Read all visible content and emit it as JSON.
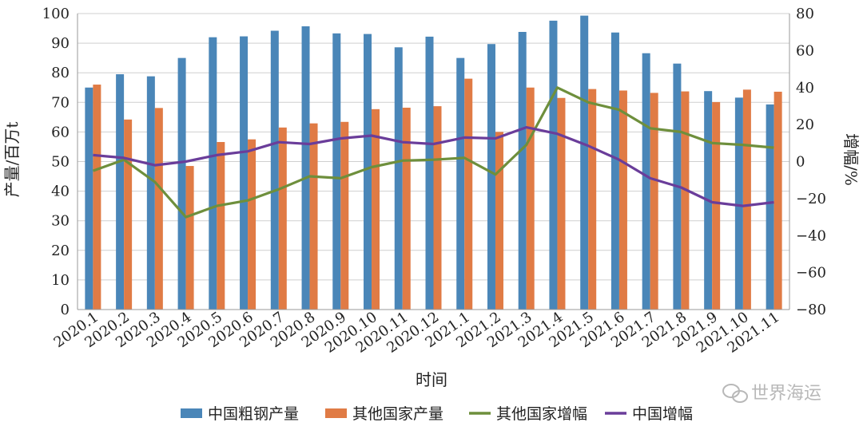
{
  "chart_data": {
    "type": "bar",
    "categories": [
      "2020.1",
      "2020.2",
      "2020.3",
      "2020.4",
      "2020.5",
      "2020.6",
      "2020.7",
      "2020.8",
      "2020.9",
      "2020.10",
      "2020.11",
      "2020.12",
      "2021.1",
      "2021.2",
      "2021.3",
      "2021.4",
      "2021.5",
      "2021.6",
      "2021.7",
      "2021.8",
      "2021.9",
      "2021.10",
      "2021.11"
    ],
    "xlabel": "时间",
    "ylabel": "产量/百万t",
    "y2label": "增幅/%",
    "ylim": [
      0,
      100
    ],
    "y2lim": [
      -80,
      80
    ],
    "yticks": [
      0,
      10,
      20,
      30,
      40,
      50,
      60,
      70,
      80,
      90,
      100
    ],
    "y2ticks": [
      -80,
      -60,
      -40,
      -20,
      0,
      20,
      40,
      60,
      80
    ],
    "grid": true,
    "legend_position": "bottom",
    "series": [
      {
        "name": "中国粗钢产量",
        "type": "bar",
        "axis": "left",
        "color": "#4a86b8",
        "values": [
          75.0,
          79.5,
          78.8,
          85.0,
          92.0,
          92.3,
          94.2,
          95.7,
          93.3,
          93.1,
          88.6,
          92.2,
          85.0,
          89.7,
          93.8,
          97.6,
          99.3,
          93.6,
          86.6,
          83.1,
          73.8,
          71.6,
          69.3
        ]
      },
      {
        "name": "其他国家产量",
        "type": "bar",
        "axis": "left",
        "color": "#e07b45",
        "values": [
          76.0,
          64.2,
          68.1,
          48.5,
          56.6,
          57.5,
          61.5,
          62.9,
          63.4,
          67.7,
          68.2,
          68.7,
          78.0,
          60.0,
          75.0,
          71.5,
          74.5,
          74.0,
          73.2,
          73.7,
          70.1,
          74.3,
          73.6
        ]
      },
      {
        "name": "其他国家增幅",
        "type": "line",
        "axis": "right",
        "color": "#6e8f3c",
        "values": [
          -5,
          1,
          -11,
          -30,
          -24,
          -21,
          -15,
          -8,
          -9,
          -3,
          0.5,
          1,
          2,
          -7,
          9,
          40,
          32,
          28,
          18,
          16,
          10,
          9,
          7.5
        ]
      },
      {
        "name": "中国增幅",
        "type": "line",
        "axis": "right",
        "color": "#6a3d9a",
        "values": [
          3.5,
          2,
          -2,
          0,
          3.5,
          5.5,
          10.5,
          9.5,
          12.5,
          14,
          10.5,
          9.5,
          13,
          12.5,
          18.5,
          15,
          8.5,
          1,
          -9,
          -14,
          -22,
          -24,
          -22
        ]
      }
    ]
  },
  "watermark": {
    "text": "世界海运",
    "icon": "wechat-icon"
  }
}
